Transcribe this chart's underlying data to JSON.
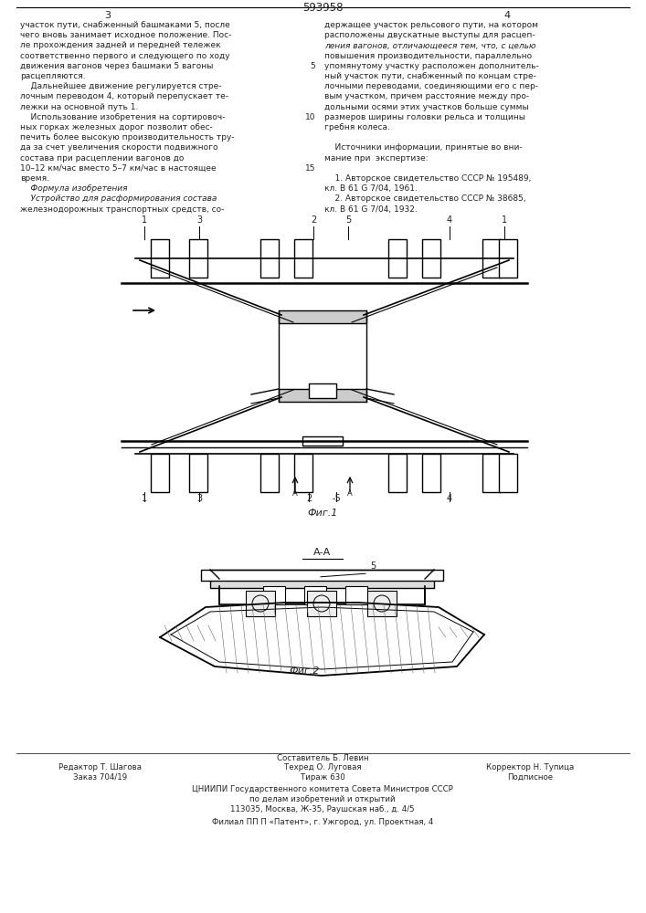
{
  "patent_number": "593958",
  "bg_color": "#ffffff",
  "col1_text": [
    "участок пути, снабженный башмаками 5, после",
    "чего вновь занимает исходное положение. Пос-",
    "ле прохождения задней и передней тележек",
    "соответственно первого и следующего по ходу",
    "движения вагонов через башмаки 5 вагоны",
    "расцепляются.",
    "    Дальнейшее движение регулируется стре-",
    "лочным переводом 4, который перепускает те-",
    "лежки на основной путь 1.",
    "    Использование изобретения на сортировоч-",
    "ных горках железных дорог позволит обес-",
    "печить более высокую производительность тру-",
    "да за счет увеличения скорости подвижного",
    "состава при расцеплении вагонов до",
    "10–12 км/час вместо 5–7 км/час в настоящее",
    "время.",
    "    Формула изобретения",
    "    Устройство для расформирования состава",
    "железнодорожных транспортных средств, со-"
  ],
  "col2_text": [
    "держащее участок рельсового пути, на котором",
    "расположены двускатные выступы для расцеп-",
    "ления вагонов, отличающееся тем, что, с целью",
    "повышения производительности, параллельно",
    "упомянутому участку расположен дополнитель-",
    "ный участок пути, снабженный по концам стре-",
    "лочными переводами, соединяющими его с пер-",
    "вым участком, причем расстояние между про-",
    "дольными осями этих участков больше суммы",
    "размеров ширины головки рельса и толщины",
    "гребня колеса.",
    "",
    "    Источники информации, принятые во вни-",
    "мание при  экспертизе:",
    "",
    "    1. Авторское свидетельство СССР № 195489,",
    "кл. В 61 G 7/04, 1961.",
    "    2. Авторское свидетельство СССР № 38685,",
    "кл. В 61 G 7/04, 1932."
  ],
  "fig1_label": "Фиг.1",
  "fig2_label": "Фиг.2",
  "section_label": "А-А",
  "footer_line1": "Составитель Б. Левин",
  "footer_col1_line1": "Редактор Т. Шагова",
  "footer_col1_line2": "Заказ 704/19",
  "footer_col2_line1": "Техред О. Луговая",
  "footer_col2_line2": "Тираж 630",
  "footer_col3_line1": "Корректор Н. Тупица",
  "footer_col3_line2": "Подписное",
  "footer_org1": "ЦНИИПИ Государственного комитета Совета Министров СССР",
  "footer_org2": "по делам изобретений и открытий",
  "footer_addr": "113035, Москва, Ж-35, Раушская наб., д. 4/5",
  "footer_branch": "Филиал ПП П «Патент», г. Ужгород, ул. Проектная, 4"
}
